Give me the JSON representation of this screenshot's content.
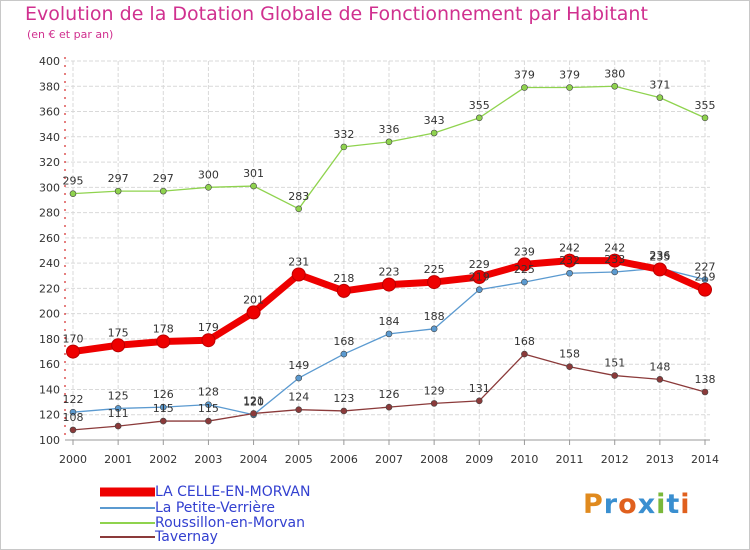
{
  "header": {
    "title": "Evolution de la Dotation Globale de Fonctionnement par Habitant",
    "subtitle": "(en € et par an)"
  },
  "logo": {
    "text": "Proxiti",
    "colors": [
      "#e08a1e",
      "#3a8fd0",
      "#e0601e",
      "#3a8fd0",
      "#7ab83a",
      "#3a8fd0",
      "#e0601e"
    ]
  },
  "colors": {
    "title": "#d0308f",
    "grid": "#d9d9d9",
    "axis": "#cc0000",
    "tick_text": "#333333"
  },
  "chart_data": {
    "type": "line",
    "x": [
      "2000",
      "2001",
      "2002",
      "2003",
      "2004",
      "2005",
      "2006",
      "2007",
      "2008",
      "2009",
      "2010",
      "2011",
      "2012",
      "2013",
      "2014"
    ],
    "ylim": [
      100,
      400
    ],
    "yticks": [
      100,
      120,
      140,
      160,
      180,
      200,
      220,
      240,
      260,
      280,
      300,
      320,
      340,
      360,
      380,
      400
    ],
    "grid": true,
    "legend_position": "bottom-left",
    "series": [
      {
        "name": "LA CELLE-EN-MORVAN",
        "color": "#ee0000",
        "text_color": "#3340d0",
        "bold": true,
        "values": [
          170,
          175,
          178,
          179,
          201,
          231,
          218,
          223,
          225,
          229,
          239,
          242,
          242,
          235,
          219
        ]
      },
      {
        "name": "La Petite-Verrière",
        "color": "#5b9ad0",
        "text_color": "#3340d0",
        "bold": false,
        "values": [
          122,
          125,
          126,
          128,
          120,
          149,
          168,
          184,
          188,
          219,
          225,
          232,
          233,
          236,
          227
        ]
      },
      {
        "name": "Roussillon-en-Morvan",
        "color": "#8fd34e",
        "text_color": "#3340d0",
        "bold": false,
        "values": [
          295,
          297,
          297,
          300,
          301,
          283,
          332,
          336,
          343,
          355,
          379,
          379,
          380,
          371,
          355
        ]
      },
      {
        "name": "Tavernay",
        "color": "#8b3a3a",
        "text_color": "#3340d0",
        "bold": false,
        "values": [
          108,
          111,
          115,
          115,
          121,
          124,
          123,
          126,
          129,
          131,
          168,
          158,
          151,
          148,
          138
        ]
      }
    ]
  }
}
